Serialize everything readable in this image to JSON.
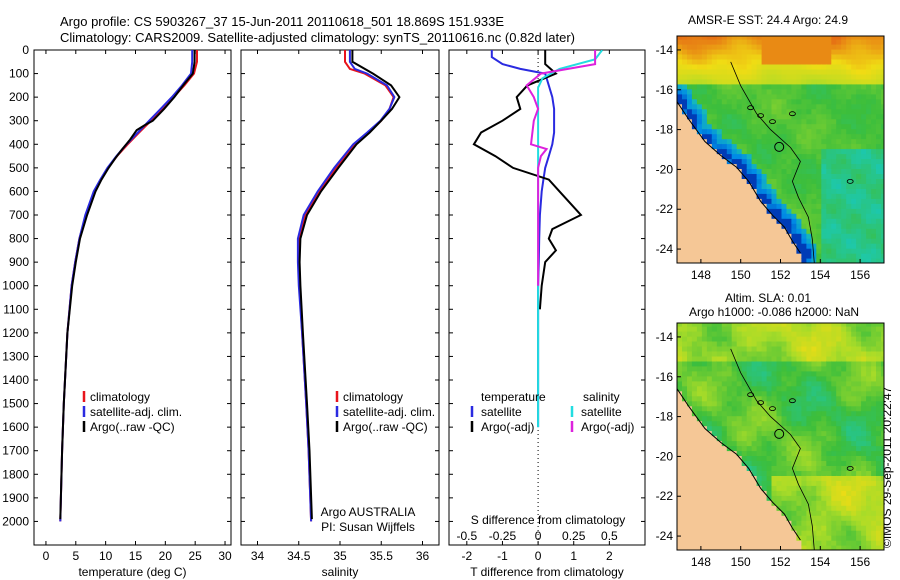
{
  "header": {
    "line1": "Argo profile: CS 5903267_37 15-Jun-2011 20110618_501 18.869S 151.933E",
    "line2": "Climatology: CARS2009. Satellite-adjusted climatology: synTS_20110616.nc (0.82d later)"
  },
  "side_label": "©IMOS 29-Sep-2011 20:22:47",
  "colors": {
    "climatology": "#e8141c",
    "satellite": "#2a2ae0",
    "argo": "#000000",
    "sat_salinity": "#22dde0",
    "argo_salinity": "#dd22dd",
    "land": "#f5c796"
  },
  "chart_data": [
    {
      "type": "line",
      "xlabel": "temperature (deg C)",
      "ylabel": "",
      "xlim": [
        -2,
        31
      ],
      "ylim": [
        2100,
        0
      ],
      "xticks": [
        "0",
        "5",
        "10",
        "15",
        "20",
        "25",
        "30"
      ],
      "yticks": [
        "0",
        "100",
        "200",
        "300",
        "400",
        "500",
        "600",
        "700",
        "800",
        "900",
        "1000",
        "1100",
        "1200",
        "1300",
        "1400",
        "1500",
        "1600",
        "1700",
        "1800",
        "1900",
        "2000"
      ],
      "legend": {
        "position": "lower-left",
        "entries": [
          "climatology",
          "satellite-adj. clim.",
          "Argo(..raw -QC)"
        ]
      },
      "series": [
        {
          "name": "climatology",
          "depth": [
            0,
            50,
            100,
            150,
            200,
            250,
            300,
            350,
            400,
            450,
            500,
            550,
            600,
            700,
            800,
            900,
            1000,
            1200,
            1500,
            1700,
            2000
          ],
          "values": [
            25.3,
            25.3,
            24.8,
            23.2,
            21.4,
            19.5,
            17.6,
            15.6,
            13.7,
            11.9,
            10.4,
            9.2,
            8.1,
            6.7,
            5.6,
            4.9,
            4.3,
            3.6,
            3.0,
            2.7,
            2.4
          ]
        },
        {
          "name": "satellite-adj. clim.",
          "depth": [
            0,
            50,
            100,
            150,
            200,
            250,
            300,
            350,
            400,
            450,
            500,
            550,
            600,
            700,
            800,
            900,
            1000,
            1200,
            1500,
            1700,
            2000
          ],
          "values": [
            24.5,
            24.5,
            24.3,
            22.8,
            21.1,
            19.2,
            17.3,
            15.4,
            13.5,
            11.8,
            10.3,
            9.1,
            8.0,
            6.6,
            5.6,
            4.9,
            4.3,
            3.6,
            3.0,
            2.7,
            2.4
          ]
        },
        {
          "name": "Argo(..raw -QC)",
          "depth": [
            0,
            50,
            100,
            150,
            200,
            250,
            300,
            320,
            340,
            380,
            420,
            460,
            500,
            550,
            600,
            700,
            800,
            900,
            1000,
            1200,
            1500,
            1700,
            1990
          ],
          "values": [
            24.9,
            24.9,
            24.6,
            23.0,
            21.5,
            19.8,
            17.9,
            16.5,
            15.2,
            14.1,
            12.8,
            11.6,
            10.5,
            9.3,
            8.3,
            6.9,
            5.7,
            5.0,
            4.4,
            3.6,
            3.0,
            2.7,
            2.4
          ]
        }
      ]
    },
    {
      "type": "line",
      "xlabel": "salinity",
      "ylabel": "",
      "xlim": [
        33.8,
        36.2
      ],
      "ylim": [
        2100,
        0
      ],
      "xticks": [
        "34",
        "34.5",
        "35",
        "35.5",
        "36"
      ],
      "legend": {
        "position": "lower-left",
        "entries": [
          "climatology",
          "satellite-adj. clim.",
          "Argo(..raw -QC)"
        ]
      },
      "annotation": [
        "Argo AUSTRALIA",
        "PI: Susan Wijffels"
      ],
      "series": [
        {
          "name": "climatology",
          "depth": [
            0,
            50,
            80,
            100,
            150,
            200,
            250,
            300,
            350,
            400,
            500,
            600,
            700,
            800,
            900,
            1000,
            1200,
            1500,
            1700,
            2000
          ],
          "values": [
            35.06,
            35.06,
            35.12,
            35.3,
            35.55,
            35.65,
            35.6,
            35.5,
            35.35,
            35.18,
            34.95,
            34.75,
            34.58,
            34.5,
            34.5,
            34.51,
            34.54,
            34.59,
            34.62,
            34.65
          ]
        },
        {
          "name": "satellite-adj. clim.",
          "depth": [
            0,
            50,
            80,
            100,
            150,
            200,
            250,
            300,
            350,
            400,
            500,
            600,
            700,
            800,
            900,
            1000,
            1200,
            1500,
            1700,
            2000
          ],
          "values": [
            35.12,
            35.12,
            35.18,
            35.33,
            35.57,
            35.66,
            35.6,
            35.49,
            35.33,
            35.16,
            34.93,
            34.73,
            34.56,
            34.49,
            34.49,
            34.5,
            34.54,
            34.59,
            34.62,
            34.65
          ]
        },
        {
          "name": "Argo(..raw -QC)",
          "depth": [
            0,
            50,
            100,
            150,
            200,
            250,
            300,
            350,
            400,
            500,
            600,
            700,
            800,
            900,
            1000,
            1200,
            1500,
            1700,
            1990
          ],
          "values": [
            35.15,
            35.15,
            35.4,
            35.62,
            35.72,
            35.63,
            35.5,
            35.36,
            35.2,
            34.98,
            34.77,
            34.6,
            34.52,
            34.51,
            34.52,
            34.55,
            34.6,
            34.63,
            34.66
          ]
        }
      ]
    },
    {
      "type": "line",
      "xlabel": "T difference from climatology",
      "xlabel2": "S difference from climatology",
      "xlim": [
        -2.5,
        3
      ],
      "xlim_salinity": [
        -0.625,
        0.75
      ],
      "ylim": [
        2100,
        0
      ],
      "xticks": [
        "-2",
        "-1",
        "0",
        "1",
        "2"
      ],
      "xticks_salinity": [
        "-0.5",
        "-0.25",
        "0",
        "0.25",
        "0.5"
      ],
      "legend": {
        "position": "lower-center",
        "columns": [
          [
            "temperature",
            "satellite",
            "Argo(-adj)"
          ],
          [
            "salinity",
            "satellite",
            "Argo(-adj)"
          ]
        ]
      },
      "series": [
        {
          "name": "temperature satellite",
          "depth": [
            0,
            30,
            60,
            80,
            100,
            150,
            200,
            250,
            300,
            350,
            400,
            450,
            500,
            550,
            600,
            700,
            800,
            900,
            1000,
            1200,
            1500,
            1600
          ],
          "values": [
            -1.3,
            -1.3,
            -1.0,
            -0.5,
            0.2,
            0.3,
            0.4,
            0.45,
            0.45,
            0.45,
            0.4,
            0.3,
            0.2,
            0.15,
            0.1,
            0.05,
            0.03,
            0.02,
            0.0,
            0.0,
            0.0,
            0.0
          ]
        },
        {
          "name": "temperature Argo(-adj)",
          "depth": [
            0,
            60,
            100,
            150,
            200,
            250,
            300,
            350,
            400,
            450,
            500,
            550,
            600,
            650,
            700,
            760,
            800,
            850,
            900,
            1000,
            1100
          ],
          "values": [
            0.2,
            0.2,
            0.5,
            -0.3,
            -0.6,
            -0.5,
            -1.0,
            -1.6,
            -1.8,
            -1.2,
            -0.7,
            0.3,
            0.6,
            0.9,
            1.2,
            0.4,
            0.3,
            0.5,
            0.2,
            0.1,
            0.05
          ]
        },
        {
          "name": "salinity satellite",
          "depth": [
            0,
            40,
            80,
            120,
            160,
            200,
            300,
            400,
            500,
            700,
            1000,
            1500,
            1600
          ],
          "values": [
            0.45,
            0.4,
            0.15,
            0.03,
            0.0,
            0.0,
            0.0,
            0.0,
            0.0,
            0.0,
            0.0,
            0.0,
            0.0
          ]
        },
        {
          "name": "salinity Argo(-adj)",
          "depth": [
            0,
            60,
            100,
            150,
            200,
            250,
            300,
            400,
            420,
            450,
            500,
            600,
            700,
            800,
            1000
          ],
          "values": [
            0.4,
            0.4,
            0.02,
            -0.08,
            -0.03,
            0.0,
            -0.03,
            -0.05,
            0.06,
            0.02,
            0.0,
            0.0,
            0.0,
            0.0,
            0.0
          ]
        }
      ]
    },
    {
      "type": "heatmap",
      "title": "AMSR-E SST: 24.4  Argo: 24.9",
      "xlim": [
        146.8,
        157.2
      ],
      "ylim": [
        -24.7,
        -13.3
      ],
      "xticks": [
        "148",
        "150",
        "152",
        "154",
        "156"
      ],
      "yticks": [
        "-14",
        "-16",
        "-18",
        "-20",
        "-22",
        "-24"
      ],
      "profile_location": [
        151.933,
        -18.869
      ]
    },
    {
      "type": "heatmap",
      "title": "Altim. SLA: 0.01",
      "subtitle": "Argo h1000: -0.086 h2000: NaN",
      "xlim": [
        146.8,
        157.2
      ],
      "ylim": [
        -24.7,
        -13.3
      ],
      "xticks": [
        "148",
        "150",
        "152",
        "154",
        "156"
      ],
      "yticks": [
        "-14",
        "-16",
        "-18",
        "-20",
        "-22",
        "-24"
      ],
      "profile_location": [
        151.933,
        -18.869
      ]
    }
  ]
}
